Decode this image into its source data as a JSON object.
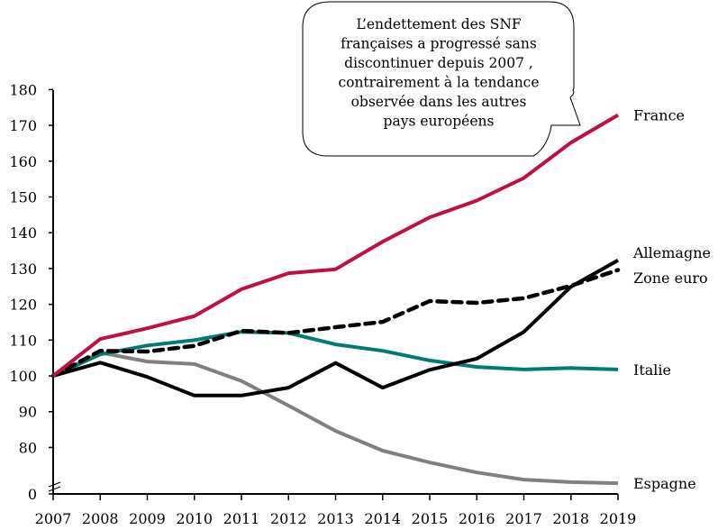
{
  "chart_data": {
    "type": "line",
    "title": "",
    "xlabel": "",
    "ylabel": "",
    "x": [
      "2007",
      "2008",
      "2009",
      "2010",
      "2011",
      "2012",
      "2013",
      "2014",
      "2015",
      "2016",
      "2017",
      "2018",
      "2019"
    ],
    "ylim": [
      0,
      180
    ],
    "axis_break": {
      "from": 0,
      "to": 75
    },
    "yticks": [
      "0",
      "80",
      "90",
      "100",
      "110",
      "120",
      "130",
      "140",
      "150",
      "160",
      "170",
      "180"
    ],
    "grid": false,
    "legend": "inline-right",
    "series": [
      {
        "name": "France",
        "color": "#C0103F",
        "style": "solid",
        "values": [
          100,
          110.3,
          113.3,
          116.7,
          124.2,
          128.7,
          129.8,
          137.5,
          144.3,
          149.0,
          155.3,
          165.2,
          172.9
        ]
      },
      {
        "name": "Allemagne",
        "color": "#000000",
        "style": "solid",
        "values": [
          100,
          103.7,
          99.7,
          94.5,
          94.5,
          96.7,
          103.6,
          96.7,
          101.7,
          104.8,
          112.3,
          124.9,
          132.3
        ]
      },
      {
        "name": "Zone euro",
        "color": "#000000",
        "style": "dashed",
        "values": [
          100,
          107.0,
          106.8,
          108.4,
          112.6,
          112.0,
          113.6,
          115.1,
          120.9,
          120.4,
          121.7,
          125.2,
          129.6
        ]
      },
      {
        "name": "Italie",
        "color": "#007A72",
        "style": "solid",
        "values": [
          100,
          106.0,
          108.5,
          110.0,
          112.3,
          112.0,
          108.8,
          107.0,
          104.3,
          102.5,
          101.8,
          102.2,
          101.8
        ]
      },
      {
        "name": "Espagne",
        "color": "#808080",
        "style": "solid",
        "values": [
          100,
          106.5,
          104.0,
          103.3,
          98.6,
          91.7,
          84.6,
          79.1,
          75.8,
          73.0,
          71.0,
          70.3,
          70.0
        ]
      }
    ],
    "annotations": [
      {
        "type": "callout",
        "lines": [
          "L’endettement des SNF",
          "françaises a progressé sans",
          "discontinuer depuis 2007 ,",
          "contrairement à la tendance",
          "observée dans les autres",
          "pays européens"
        ],
        "points_to": "France"
      }
    ]
  }
}
